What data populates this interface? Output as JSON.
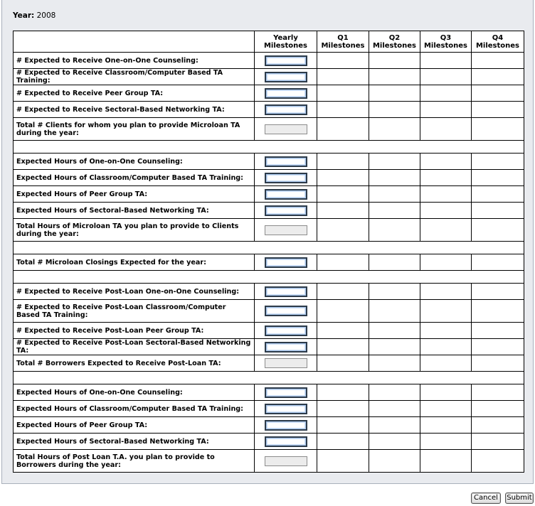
{
  "year_label": "Year:",
  "year": "2008",
  "columns": [
    "Yearly Milestones",
    "Q1 Milestones",
    "Q2 Milestones",
    "Q3 Milestones",
    "Q4 Milestones"
  ],
  "sections": [
    {
      "rows": [
        {
          "label": "# Expected to Receive One-on-One Counseling:",
          "input": "editable"
        },
        {
          "label": "# Expected to Receive Classroom/Computer Based TA Training:",
          "input": "editable"
        },
        {
          "label": "# Expected to Receive Peer Group TA:",
          "input": "editable"
        },
        {
          "label": "# Expected to Receive Sectoral-Based Networking TA:",
          "input": "editable"
        },
        {
          "label": "Total # Clients for whom you plan to provide Microloan TA during the year:",
          "input": "disabled"
        }
      ]
    },
    {
      "rows": [
        {
          "label": "Expected Hours of One-on-One Counseling:",
          "input": "editable"
        },
        {
          "label": "Expected Hours of Classroom/Computer Based TA Training:",
          "input": "editable"
        },
        {
          "label": "Expected Hours of Peer Group TA:",
          "input": "editable"
        },
        {
          "label": "Expected Hours of Sectoral-Based Networking TA:",
          "input": "editable"
        },
        {
          "label": "Total Hours of Microloan TA you plan to provide to Clients during the year:",
          "input": "disabled"
        }
      ]
    },
    {
      "rows": [
        {
          "label": "Total # Microloan Closings Expected for the year:",
          "input": "editable"
        }
      ]
    },
    {
      "rows": [
        {
          "label": "# Expected to Receive Post-Loan One-on-One Counseling:",
          "input": "editable"
        },
        {
          "label": "# Expected to Receive Post-Loan Classroom/Computer Based TA Training:",
          "input": "editable"
        },
        {
          "label": "# Expected to Receive Post-Loan Peer Group TA:",
          "input": "editable"
        },
        {
          "label": "# Expected to Receive Post-Loan Sectoral-Based Networking TA:",
          "input": "editable"
        },
        {
          "label": "Total # Borrowers Expected to Receive Post-Loan TA:",
          "input": "disabled"
        }
      ]
    },
    {
      "rows": [
        {
          "label": "Expected Hours of One-on-One Counseling:",
          "input": "editable"
        },
        {
          "label": "Expected Hours of Classroom/Computer Based TA Training:",
          "input": "editable"
        },
        {
          "label": "Expected Hours of Peer Group TA:",
          "input": "editable"
        },
        {
          "label": "Expected Hours of Sectoral-Based Networking TA:",
          "input": "editable"
        },
        {
          "label": "Total Hours of Post Loan T.A. you plan to provide to Borrowers during the year:",
          "input": "disabled"
        }
      ]
    }
  ],
  "buttons": [
    "Cancel",
    "Submit"
  ]
}
